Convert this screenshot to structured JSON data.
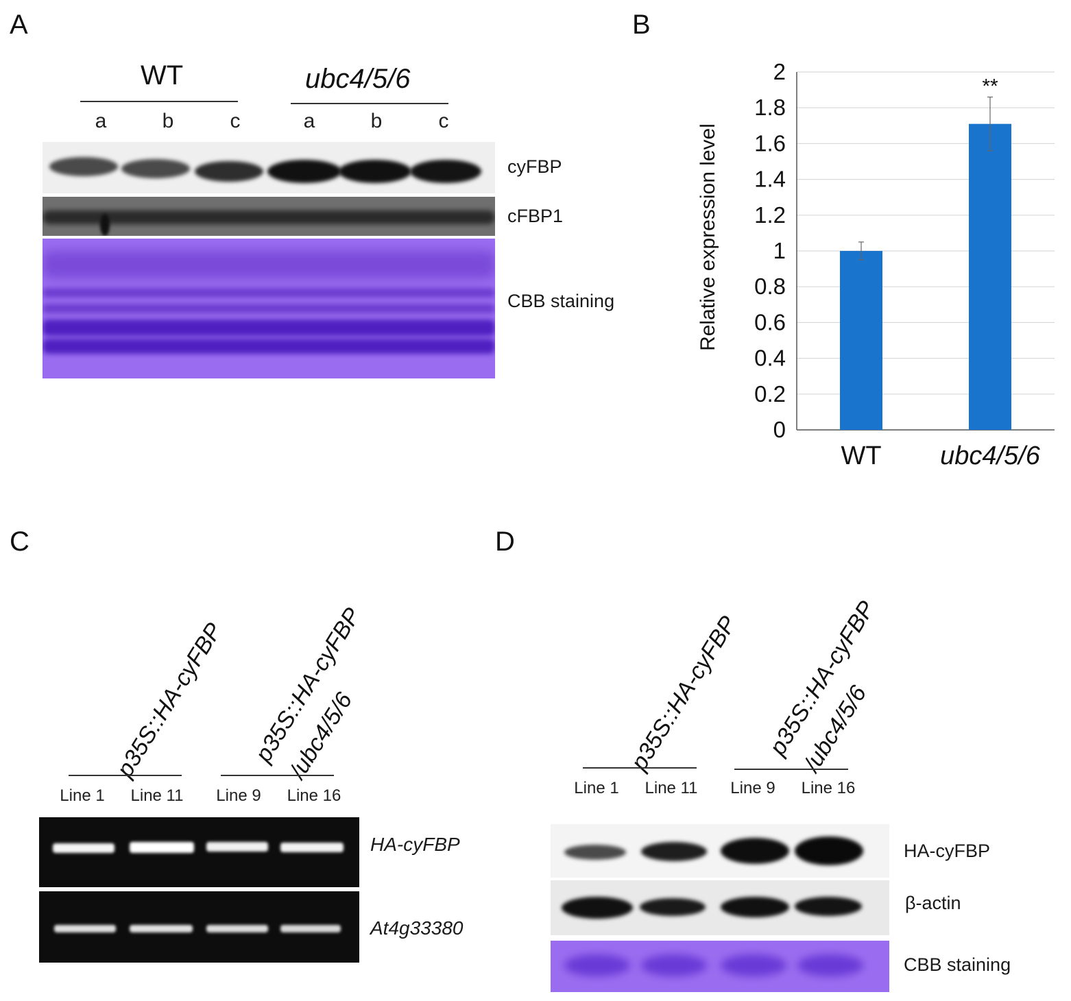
{
  "panelA": {
    "letter": "A",
    "group1": "WT",
    "group2": "ubc4/5/6",
    "lanes": [
      "a",
      "b",
      "c",
      "a",
      "b",
      "c"
    ],
    "rows": [
      "cyFBP",
      "cFBP1",
      "CBB staining"
    ]
  },
  "panelB": {
    "letter": "B"
  },
  "panelC": {
    "letter": "C",
    "group1": "p35S::HA-cyFBP",
    "group2_line1": "p35S::HA-cyFBP",
    "group2_line2": "/ubc4/5/6",
    "lanes": [
      "Line 1",
      "Line 11",
      "Line 9",
      "Line 16"
    ],
    "rows": [
      "HA-cyFBP",
      "At4g33380"
    ]
  },
  "panelD": {
    "letter": "D",
    "group1": "p35S::HA-cyFBP",
    "group2_line1": "p35S::HA-cyFBP",
    "group2_line2": "/ubc4/5/6",
    "lanes": [
      "Line 1",
      "Line 11",
      "Line 9",
      "Line 16"
    ],
    "rows": [
      "HA-cyFBP",
      "β-actin",
      "CBB staining"
    ]
  },
  "colors": {
    "bar": "#1874cd",
    "cbb": "#8a5ae0",
    "gel": "#0d0d0d"
  },
  "chart_data": {
    "type": "bar",
    "categories": [
      "WT",
      "ubc4/5/6"
    ],
    "values": [
      1.0,
      1.71
    ],
    "error": [
      0.05,
      0.15
    ],
    "significance": [
      "",
      "**"
    ],
    "ylabel": "Relative expression level",
    "ylim": [
      0,
      2
    ],
    "yticks": [
      0,
      0.2,
      0.4,
      0.6,
      0.8,
      1,
      1.2,
      1.4,
      1.6,
      1.8,
      2
    ],
    "grid": true
  }
}
